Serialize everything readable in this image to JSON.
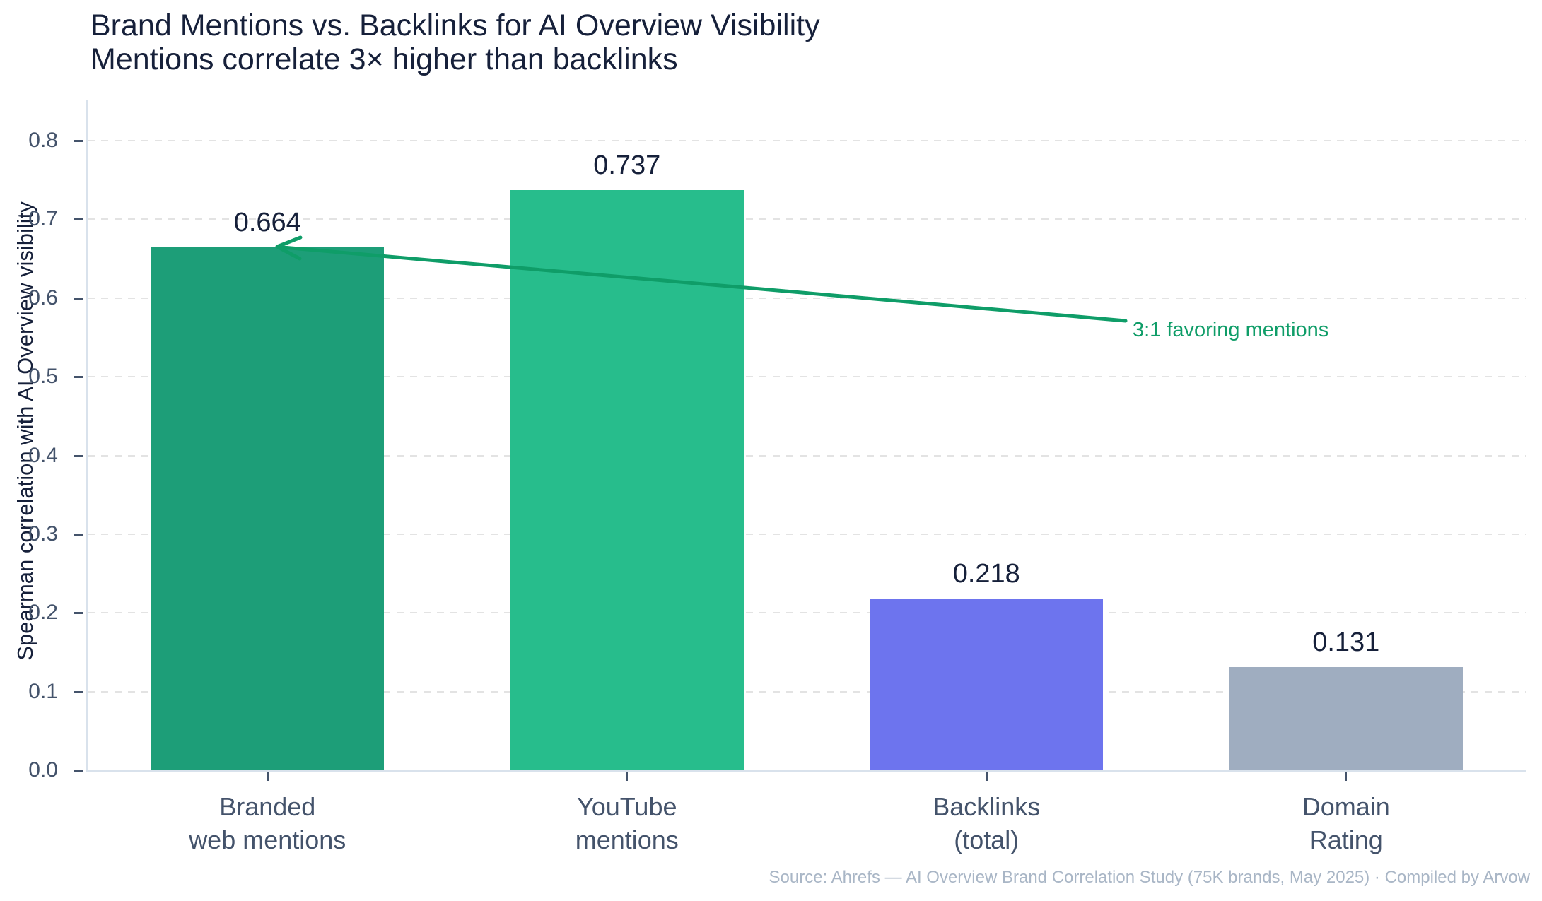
{
  "chart_data": {
    "type": "bar",
    "title": "Brand Mentions vs. Backlinks for AI Overview Visibility",
    "subtitle": "Mentions correlate 3× higher than backlinks",
    "ylabel": "Spearman correlation with AI Overview visibility",
    "xlabel": "",
    "categories": [
      "Branded\nweb mentions",
      "YouTube\nmentions",
      "Backlinks\n(total)",
      "Domain\nRating"
    ],
    "values": [
      0.664,
      0.737,
      0.218,
      0.131
    ],
    "value_labels": [
      "0.664",
      "0.737",
      "0.218",
      "0.131"
    ],
    "bar_colors": [
      "#1d9e78",
      "#27bd8c",
      "#6d74ee",
      "#9fadc0"
    ],
    "ylim": [
      0,
      0.8
    ],
    "yticks": [
      "0.0",
      "0.1",
      "0.2",
      "0.3",
      "0.4",
      "0.5",
      "0.6",
      "0.7",
      "0.8"
    ],
    "grid": "horizontal-dashed",
    "legend": "none",
    "annotation": {
      "text": "3:1 favoring mentions",
      "color": "#0f9d68",
      "points_to": "Branded web mentions bar top"
    }
  },
  "source_note": "Source: Ahrefs — AI Overview Brand Correlation Study (75K brands, May 2025) · Compiled by Arvow",
  "colors": {
    "background": "#ffffff",
    "title_text": "#16203a",
    "axis_text": "#44536b",
    "value_label_text": "#16203a",
    "grid_line": "#e3e3e3",
    "axis_line": "#d9e2ec",
    "annotation_green": "#0f9d68",
    "source_text": "#a9b6c6"
  }
}
